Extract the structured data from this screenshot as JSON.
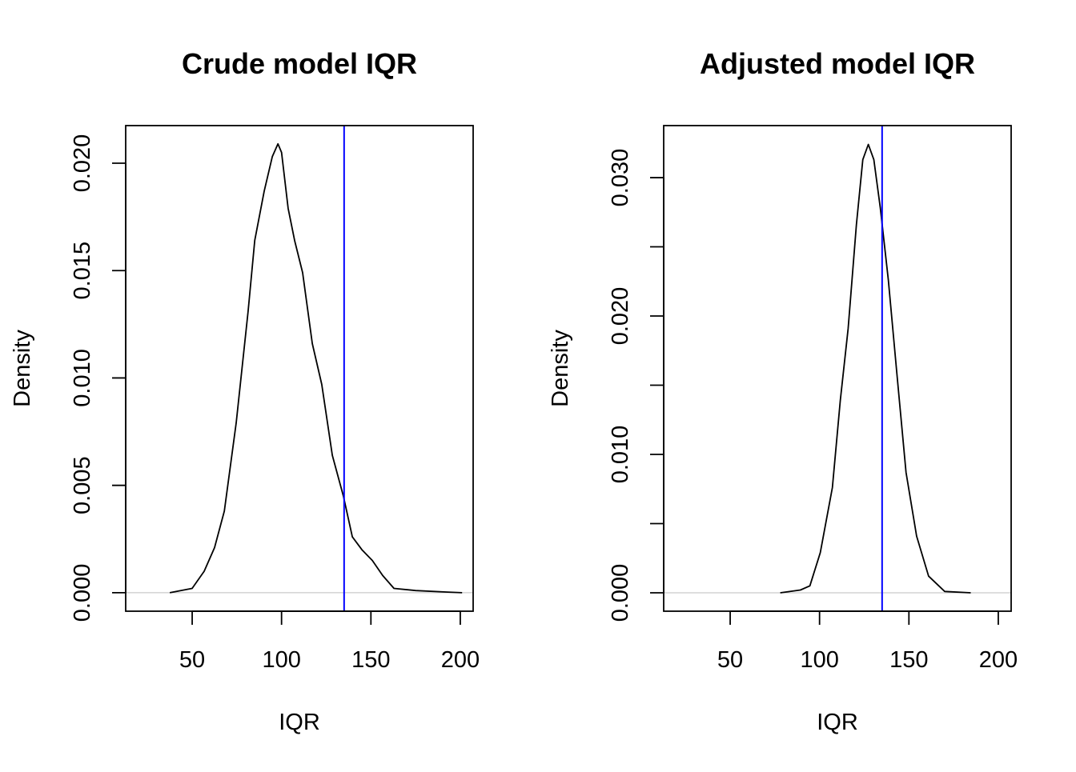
{
  "chart_data": [
    {
      "type": "line",
      "title": "Crude model IQR",
      "xlabel": "IQR",
      "ylabel": "Density",
      "xlim": [
        12.8,
        207.2
      ],
      "ylim": [
        -0.00086,
        0.02175
      ],
      "xticks": [
        50,
        100,
        150,
        200
      ],
      "xtick_labels": [
        "50",
        "100",
        "150",
        "200"
      ],
      "yticks": [
        0,
        0.005,
        0.01,
        0.015,
        0.02
      ],
      "ytick_labels": [
        "0.000",
        "0.005",
        "0.010",
        "0.015",
        "0.020"
      ],
      "grid": false,
      "reference_line": {
        "x": 135,
        "color": "#0000FF"
      },
      "baseline": {
        "y": 0,
        "color": "#BEBEBE"
      },
      "series": [
        {
          "color": "#000000",
          "x": [
            37.5,
            50,
            56.7,
            62.5,
            68,
            74.6,
            81.3,
            85,
            90.3,
            94.8,
            98,
            100,
            103.7,
            107.3,
            111.8,
            117.2,
            122.5,
            128.4,
            134.6,
            139.6,
            145,
            150.8,
            156.6,
            162.9,
            175,
            193,
            201
          ],
          "y": [
            0,
            0.0002,
            0.001,
            0.0021,
            0.0038,
            0.0079,
            0.0131,
            0.0164,
            0.0187,
            0.0203,
            0.0209,
            0.0205,
            0.0179,
            0.0164,
            0.0149,
            0.0116,
            0.0097,
            0.0064,
            0.0045,
            0.0026,
            0.002,
            0.0015,
            0.0008,
            0.0002,
            0.0001,
            3e-05,
            0
          ]
        }
      ]
    },
    {
      "type": "line",
      "title": "Adjusted model IQR",
      "xlabel": "IQR",
      "ylabel": "Density",
      "xlim": [
        12.8,
        207.2
      ],
      "ylim": [
        -0.00133,
        0.03376
      ],
      "xticks": [
        50,
        100,
        150,
        200
      ],
      "xtick_labels": [
        "50",
        "100",
        "150",
        "200"
      ],
      "yticks": [
        0,
        0.005,
        0.01,
        0.015,
        0.02,
        0.025,
        0.03
      ],
      "ytick_labels": [
        "0.000",
        "",
        "0.010",
        "",
        "0.020",
        "",
        "0.030"
      ],
      "grid": false,
      "reference_line": {
        "x": 135,
        "color": "#0000FF"
      },
      "baseline": {
        "y": 0,
        "color": "#BEBEBE"
      },
      "series": [
        {
          "color": "#000000",
          "x": [
            78,
            89.3,
            94.6,
            100.4,
            107.2,
            111.6,
            116,
            120.6,
            124.2,
            127.3,
            130.4,
            134,
            138.5,
            143,
            148.4,
            154.3,
            161,
            170,
            184.6
          ],
          "y": [
            0,
            0.0002,
            0.0005,
            0.0029,
            0.0076,
            0.0139,
            0.0191,
            0.0266,
            0.0313,
            0.0324,
            0.0313,
            0.0278,
            0.0226,
            0.0162,
            0.0087,
            0.0041,
            0.0012,
            0.0001,
            0
          ]
        }
      ]
    }
  ]
}
